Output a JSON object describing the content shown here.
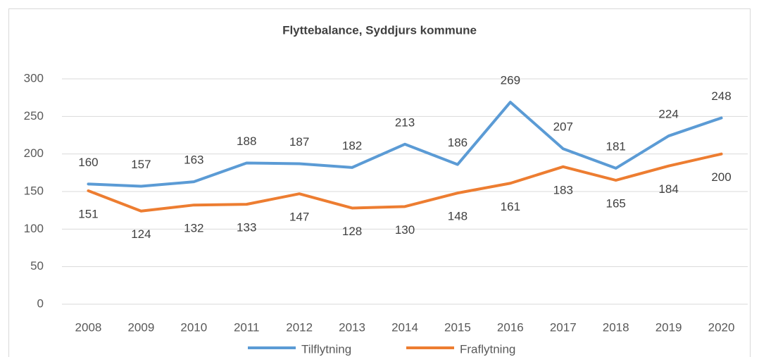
{
  "chart_data": {
    "type": "line",
    "title": "Flyttebalance, Syddjurs kommune",
    "categories": [
      "2008",
      "2009",
      "2010",
      "2011",
      "2012",
      "2013",
      "2014",
      "2015",
      "2016",
      "2017",
      "2018",
      "2019",
      "2020"
    ],
    "series": [
      {
        "name": "Tilflytning",
        "color": "#5b9bd5",
        "values": [
          160,
          157,
          163,
          188,
          187,
          182,
          213,
          186,
          269,
          207,
          181,
          224,
          248
        ]
      },
      {
        "name": "Fraflytning",
        "color": "#ed7d31",
        "values": [
          151,
          124,
          132,
          133,
          147,
          128,
          130,
          148,
          161,
          183,
          165,
          184,
          200
        ]
      }
    ],
    "ylim": [
      0,
      300
    ],
    "yticks": [
      0,
      50,
      100,
      150,
      200,
      250,
      300
    ],
    "grid": true,
    "legend": "bottom"
  }
}
